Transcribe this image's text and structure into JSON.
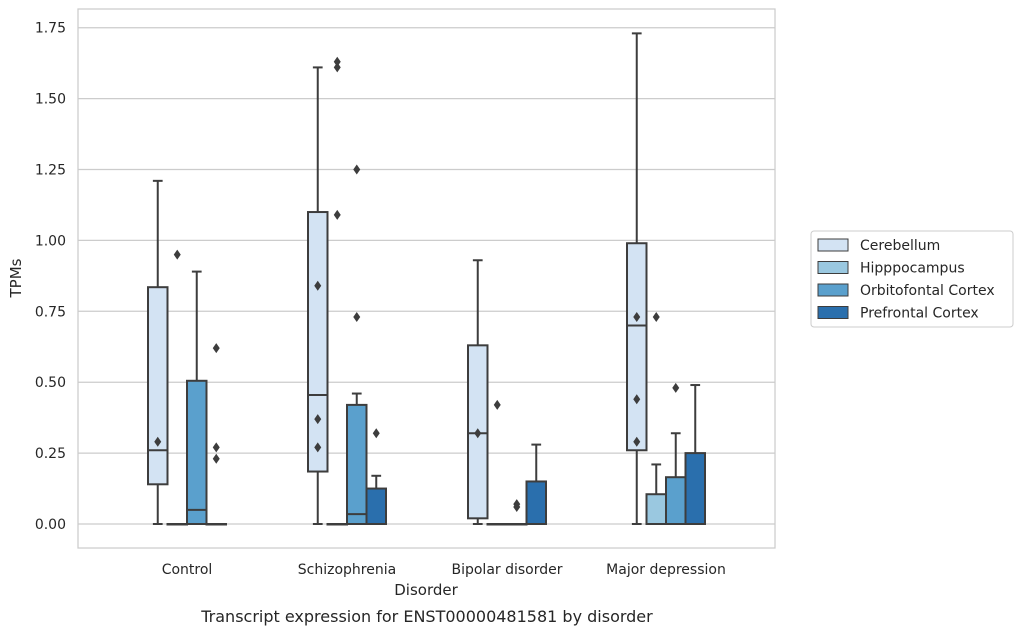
{
  "chart_data": {
    "type": "box",
    "title": "",
    "caption": "Transcript expression for ENST00000481581 by disorder",
    "xlabel": "Disorder",
    "ylabel": "TPMs",
    "ylim": [
      -0.085,
      1.82
    ],
    "yticks": [
      "0.00",
      "0.25",
      "0.50",
      "0.75",
      "1.00",
      "1.25",
      "1.50",
      "1.75"
    ],
    "grid": "horizontal",
    "legend_position": "right",
    "categories": [
      "Control",
      "Schizophrenia",
      "Bipolar disorder",
      "Major depression"
    ],
    "series": [
      {
        "name": "Cerebellum",
        "color": "#d3e3f3",
        "boxes": [
          {
            "whisker_low": 0.0,
            "q1": 0.14,
            "median": 0.26,
            "q3": 0.835,
            "whisker_high": 1.21,
            "outliers": [
              0.29
            ]
          },
          {
            "whisker_low": 0.0,
            "q1": 0.185,
            "median": 0.455,
            "q3": 1.1,
            "whisker_high": 1.61,
            "outliers": [
              0.27,
              0.37,
              0.84
            ]
          },
          {
            "whisker_low": 0.0,
            "q1": 0.02,
            "median": 0.32,
            "q3": 0.63,
            "whisker_high": 0.93,
            "outliers": [
              0.32
            ]
          },
          {
            "whisker_low": 0.0,
            "q1": 0.26,
            "median": 0.7,
            "q3": 0.99,
            "whisker_high": 1.73,
            "outliers": [
              0.29,
              0.44,
              0.73
            ]
          }
        ]
      },
      {
        "name": "Hipppocampus",
        "color": "#9ac8e0",
        "boxes": [
          {
            "whisker_low": 0.0,
            "q1": 0.0,
            "median": 0.0,
            "q3": 0.0,
            "whisker_high": 0.0,
            "outliers": [
              0.95
            ]
          },
          {
            "whisker_low": 0.0,
            "q1": 0.0,
            "median": 0.0,
            "q3": 0.0,
            "whisker_high": 0.0,
            "outliers": [
              1.09,
              1.61,
              1.63
            ]
          },
          {
            "whisker_low": 0.0,
            "q1": 0.0,
            "median": 0.0,
            "q3": 0.0,
            "whisker_high": 0.0,
            "outliers": [
              0.42
            ]
          },
          {
            "whisker_low": 0.0,
            "q1": 0.0,
            "median": 0.0,
            "q3": 0.105,
            "whisker_high": 0.21,
            "outliers": [
              0.73
            ]
          }
        ]
      },
      {
        "name": "Orbitofontal Cortex",
        "color": "#5aa0cd",
        "boxes": [
          {
            "whisker_low": 0.0,
            "q1": 0.0,
            "median": 0.05,
            "q3": 0.505,
            "whisker_high": 0.89,
            "outliers": []
          },
          {
            "whisker_low": 0.0,
            "q1": 0.0,
            "median": 0.035,
            "q3": 0.42,
            "whisker_high": 0.46,
            "outliers": [
              1.25,
              0.73
            ]
          },
          {
            "whisker_low": 0.0,
            "q1": 0.0,
            "median": 0.0,
            "q3": 0.0,
            "whisker_high": 0.0,
            "outliers": [
              0.07,
              0.06
            ]
          },
          {
            "whisker_low": 0.0,
            "q1": 0.0,
            "median": 0.0,
            "q3": 0.165,
            "whisker_high": 0.32,
            "outliers": [
              0.48
            ]
          }
        ]
      },
      {
        "name": "Prefrontal Cortex",
        "color": "#2a6fad",
        "boxes": [
          {
            "whisker_low": 0.0,
            "q1": 0.0,
            "median": 0.0,
            "q3": 0.0,
            "whisker_high": 0.0,
            "outliers": [
              0.62,
              0.27,
              0.23
            ]
          },
          {
            "whisker_low": 0.0,
            "q1": 0.0,
            "median": 0.0,
            "q3": 0.125,
            "whisker_high": 0.17,
            "outliers": [
              0.32
            ]
          },
          {
            "whisker_low": 0.0,
            "q1": 0.0,
            "median": 0.0,
            "q3": 0.15,
            "whisker_high": 0.28,
            "outliers": []
          },
          {
            "whisker_low": 0.0,
            "q1": 0.0,
            "median": 0.0,
            "q3": 0.25,
            "whisker_high": 0.49,
            "outliers": []
          }
        ]
      }
    ]
  }
}
